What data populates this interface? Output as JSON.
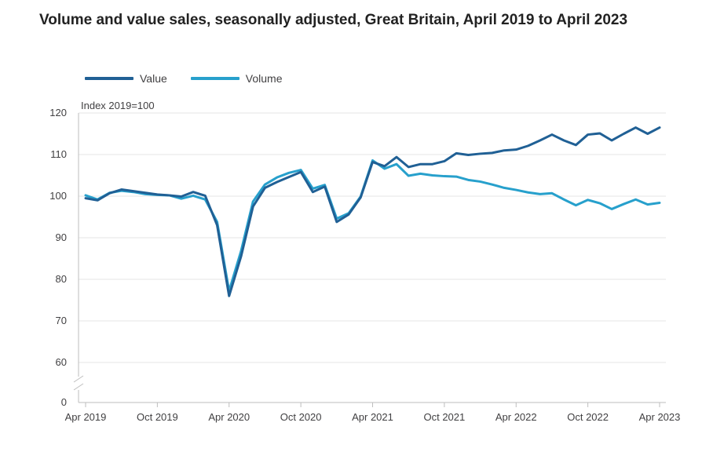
{
  "title": "Volume and value sales, seasonally adjusted, Great Britain, April 2019 to April 2023",
  "colors": {
    "value": "#206095",
    "volume": "#27A0CC",
    "grid": "#e5e5e5",
    "axis": "#bebebe",
    "text": "#414042"
  },
  "chart_data": {
    "type": "line",
    "ylabel": "Index 2019=100",
    "y_ticks": [
      0,
      60,
      70,
      80,
      90,
      100,
      110,
      120
    ],
    "ylim": [
      55,
      120
    ],
    "y_axis_break": true,
    "grid": true,
    "legend_position": "top-left",
    "x_tick_labels": [
      "Apr 2019",
      "Oct 2019",
      "Apr 2020",
      "Oct 2020",
      "Apr 2021",
      "Oct 2021",
      "Apr 2022",
      "Oct 2022",
      "Apr 2023"
    ],
    "x_tick_index": [
      0,
      6,
      12,
      18,
      24,
      30,
      36,
      42,
      48
    ],
    "series": [
      {
        "name": "Value",
        "color": "#206095",
        "values": [
          99.5,
          99.0,
          100.7,
          101.6,
          101.2,
          100.8,
          100.4,
          100.2,
          99.9,
          101.0,
          100.1,
          93.0,
          76.0,
          85.5,
          97.5,
          102.0,
          103.4,
          104.6,
          105.8,
          101.0,
          102.3,
          93.8,
          95.6,
          99.7,
          108.2,
          107.2,
          109.4,
          107.0,
          107.7,
          107.7,
          108.4,
          110.3,
          109.9,
          110.2,
          110.4,
          111.0,
          111.2,
          112.1,
          113.4,
          114.8,
          113.4,
          112.3,
          114.8,
          115.1,
          113.4,
          115.0,
          116.5,
          115.0,
          116.5
        ]
      },
      {
        "name": "Volume",
        "color": "#27A0CC",
        "values": [
          100.2,
          99.2,
          100.8,
          101.3,
          101.0,
          100.5,
          100.3,
          100.2,
          99.4,
          100.1,
          99.2,
          93.8,
          77.2,
          86.8,
          98.7,
          102.8,
          104.5,
          105.6,
          106.3,
          101.8,
          102.7,
          94.6,
          95.9,
          99.9,
          108.6,
          106.6,
          107.7,
          104.9,
          105.4,
          105.0,
          104.8,
          104.7,
          103.9,
          103.5,
          102.8,
          102.0,
          101.5,
          100.9,
          100.5,
          100.7,
          99.2,
          97.8,
          99.1,
          98.3,
          96.9,
          98.1,
          99.2,
          98.0,
          98.4
        ]
      }
    ]
  }
}
